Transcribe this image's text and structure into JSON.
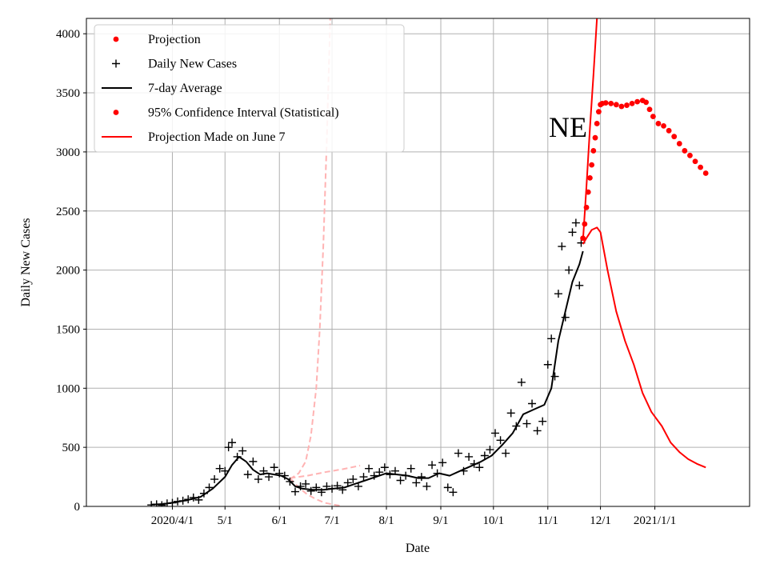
{
  "chart_data": {
    "type": "line",
    "region_label": "NE",
    "xlabel": "Date",
    "ylabel": "Daily New Cases",
    "ylim": [
      0,
      4130
    ],
    "xlim": [
      "2020-02-12",
      "2021-02-24"
    ],
    "grid": true,
    "legend_position": "top-left",
    "x_ticks": [
      {
        "date": "2020-04-01",
        "label": "2020/4/1"
      },
      {
        "date": "2020-05-01",
        "label": "5/1"
      },
      {
        "date": "2020-06-01",
        "label": "6/1"
      },
      {
        "date": "2020-07-01",
        "label": "7/1"
      },
      {
        "date": "2020-08-01",
        "label": "8/1"
      },
      {
        "date": "2020-09-01",
        "label": "9/1"
      },
      {
        "date": "2020-10-01",
        "label": "10/1"
      },
      {
        "date": "2020-11-01",
        "label": "11/1"
      },
      {
        "date": "2020-12-01",
        "label": "12/1"
      },
      {
        "date": "2021-01-01",
        "label": "2021/1/1"
      }
    ],
    "y_ticks": [
      0,
      500,
      1000,
      1500,
      2000,
      2500,
      3000,
      3500,
      4000
    ],
    "legend": [
      {
        "label": "Projection",
        "marker": "dot",
        "color": "#ff0000"
      },
      {
        "label": "Daily New Cases",
        "marker": "plus",
        "color": "#000000"
      },
      {
        "label": "7-day Average",
        "marker": "line",
        "color": "#000000"
      },
      {
        "label": "95% Confidence Interval (Statistical)",
        "marker": "dot",
        "color": "#ff0000"
      },
      {
        "label": "Projection Made on June 7",
        "marker": "line",
        "color": "#ff0000"
      }
    ],
    "series": {
      "daily_new_cases": {
        "color": "#000000",
        "points": [
          [
            "2020-03-20",
            12
          ],
          [
            "2020-03-23",
            18
          ],
          [
            "2020-03-26",
            10
          ],
          [
            "2020-03-29",
            25
          ],
          [
            "2020-04-01",
            30
          ],
          [
            "2020-04-04",
            42
          ],
          [
            "2020-04-07",
            48
          ],
          [
            "2020-04-10",
            60
          ],
          [
            "2020-04-13",
            75
          ],
          [
            "2020-04-16",
            55
          ],
          [
            "2020-04-19",
            110
          ],
          [
            "2020-04-22",
            160
          ],
          [
            "2020-04-25",
            230
          ],
          [
            "2020-04-28",
            320
          ],
          [
            "2020-05-01",
            300
          ],
          [
            "2020-05-03",
            500
          ],
          [
            "2020-05-05",
            540
          ],
          [
            "2020-05-08",
            420
          ],
          [
            "2020-05-11",
            470
          ],
          [
            "2020-05-14",
            270
          ],
          [
            "2020-05-17",
            380
          ],
          [
            "2020-05-20",
            230
          ],
          [
            "2020-05-23",
            300
          ],
          [
            "2020-05-26",
            250
          ],
          [
            "2020-05-29",
            330
          ],
          [
            "2020-06-01",
            280
          ],
          [
            "2020-06-04",
            260
          ],
          [
            "2020-06-07",
            210
          ],
          [
            "2020-06-10",
            125
          ],
          [
            "2020-06-13",
            170
          ],
          [
            "2020-06-16",
            190
          ],
          [
            "2020-06-19",
            130
          ],
          [
            "2020-06-22",
            160
          ],
          [
            "2020-06-25",
            120
          ],
          [
            "2020-06-28",
            170
          ],
          [
            "2020-07-01",
            150
          ],
          [
            "2020-07-04",
            175
          ],
          [
            "2020-07-07",
            140
          ],
          [
            "2020-07-10",
            200
          ],
          [
            "2020-07-13",
            230
          ],
          [
            "2020-07-16",
            170
          ],
          [
            "2020-07-19",
            250
          ],
          [
            "2020-07-22",
            320
          ],
          [
            "2020-07-25",
            260
          ],
          [
            "2020-07-28",
            290
          ],
          [
            "2020-07-31",
            330
          ],
          [
            "2020-08-03",
            270
          ],
          [
            "2020-08-06",
            300
          ],
          [
            "2020-08-09",
            220
          ],
          [
            "2020-08-12",
            260
          ],
          [
            "2020-08-15",
            320
          ],
          [
            "2020-08-18",
            200
          ],
          [
            "2020-08-21",
            250
          ],
          [
            "2020-08-24",
            170
          ],
          [
            "2020-08-27",
            350
          ],
          [
            "2020-08-30",
            280
          ],
          [
            "2020-09-02",
            370
          ],
          [
            "2020-09-05",
            160
          ],
          [
            "2020-09-08",
            120
          ],
          [
            "2020-09-11",
            450
          ],
          [
            "2020-09-14",
            300
          ],
          [
            "2020-09-17",
            420
          ],
          [
            "2020-09-20",
            360
          ],
          [
            "2020-09-23",
            330
          ],
          [
            "2020-09-26",
            430
          ],
          [
            "2020-09-29",
            480
          ],
          [
            "2020-10-02",
            620
          ],
          [
            "2020-10-05",
            560
          ],
          [
            "2020-10-08",
            450
          ],
          [
            "2020-10-11",
            790
          ],
          [
            "2020-10-14",
            680
          ],
          [
            "2020-10-17",
            1050
          ],
          [
            "2020-10-20",
            700
          ],
          [
            "2020-10-23",
            870
          ],
          [
            "2020-10-26",
            640
          ],
          [
            "2020-10-29",
            720
          ],
          [
            "2020-11-01",
            1200
          ],
          [
            "2020-11-03",
            1420
          ],
          [
            "2020-11-05",
            1100
          ],
          [
            "2020-11-07",
            1800
          ],
          [
            "2020-11-09",
            2200
          ],
          [
            "2020-11-11",
            1600
          ],
          [
            "2020-11-13",
            2000
          ],
          [
            "2020-11-15",
            2320
          ],
          [
            "2020-11-17",
            2400
          ],
          [
            "2020-11-19",
            1870
          ],
          [
            "2020-11-20",
            2230
          ]
        ]
      },
      "seven_day_average": {
        "color": "#000000",
        "points": [
          [
            "2020-03-20",
            15
          ],
          [
            "2020-03-27",
            20
          ],
          [
            "2020-04-03",
            35
          ],
          [
            "2020-04-10",
            55
          ],
          [
            "2020-04-17",
            80
          ],
          [
            "2020-04-24",
            150
          ],
          [
            "2020-05-01",
            250
          ],
          [
            "2020-05-05",
            350
          ],
          [
            "2020-05-09",
            420
          ],
          [
            "2020-05-13",
            380
          ],
          [
            "2020-05-17",
            310
          ],
          [
            "2020-05-21",
            270
          ],
          [
            "2020-05-25",
            280
          ],
          [
            "2020-05-29",
            270
          ],
          [
            "2020-06-02",
            260
          ],
          [
            "2020-06-06",
            230
          ],
          [
            "2020-06-10",
            170
          ],
          [
            "2020-06-14",
            150
          ],
          [
            "2020-06-20",
            140
          ],
          [
            "2020-06-26",
            140
          ],
          [
            "2020-07-02",
            150
          ],
          [
            "2020-07-08",
            160
          ],
          [
            "2020-07-14",
            190
          ],
          [
            "2020-07-20",
            220
          ],
          [
            "2020-07-26",
            250
          ],
          [
            "2020-08-01",
            280
          ],
          [
            "2020-08-07",
            270
          ],
          [
            "2020-08-13",
            260
          ],
          [
            "2020-08-19",
            240
          ],
          [
            "2020-08-25",
            240
          ],
          [
            "2020-08-31",
            280
          ],
          [
            "2020-09-06",
            260
          ],
          [
            "2020-09-12",
            300
          ],
          [
            "2020-09-18",
            340
          ],
          [
            "2020-09-24",
            380
          ],
          [
            "2020-09-30",
            430
          ],
          [
            "2020-10-06",
            520
          ],
          [
            "2020-10-12",
            620
          ],
          [
            "2020-10-18",
            780
          ],
          [
            "2020-10-24",
            820
          ],
          [
            "2020-10-30",
            860
          ],
          [
            "2020-11-03",
            1000
          ],
          [
            "2020-11-07",
            1400
          ],
          [
            "2020-11-11",
            1650
          ],
          [
            "2020-11-15",
            1900
          ],
          [
            "2020-11-19",
            2050
          ],
          [
            "2020-11-21",
            2160
          ]
        ]
      },
      "projection": {
        "color": "#ff0000",
        "points": [
          [
            "2020-11-21",
            2270
          ],
          [
            "2020-11-22",
            2390
          ],
          [
            "2020-11-23",
            2530
          ],
          [
            "2020-11-24",
            2660
          ],
          [
            "2020-11-25",
            2780
          ],
          [
            "2020-11-26",
            2890
          ],
          [
            "2020-11-27",
            3010
          ],
          [
            "2020-11-28",
            3120
          ],
          [
            "2020-11-29",
            3240
          ],
          [
            "2020-11-30",
            3340
          ],
          [
            "2020-12-01",
            3400
          ],
          [
            "2020-12-02",
            3410
          ],
          [
            "2020-12-04",
            3415
          ],
          [
            "2020-12-07",
            3410
          ],
          [
            "2020-12-10",
            3400
          ],
          [
            "2020-12-13",
            3385
          ],
          [
            "2020-12-16",
            3395
          ],
          [
            "2020-12-19",
            3410
          ],
          [
            "2020-12-22",
            3425
          ],
          [
            "2020-12-25",
            3435
          ],
          [
            "2020-12-27",
            3420
          ],
          [
            "2020-12-29",
            3360
          ],
          [
            "2020-12-31",
            3300
          ],
          [
            "2021-01-03",
            3240
          ],
          [
            "2021-01-06",
            3220
          ],
          [
            "2021-01-09",
            3180
          ],
          [
            "2021-01-12",
            3130
          ],
          [
            "2021-01-15",
            3070
          ],
          [
            "2021-01-18",
            3010
          ],
          [
            "2021-01-21",
            2970
          ],
          [
            "2021-01-24",
            2920
          ],
          [
            "2021-01-27",
            2870
          ],
          [
            "2021-01-30",
            2820
          ]
        ]
      },
      "confidence_interval_upper": {
        "color": "#ff0000",
        "points": [
          [
            "2020-11-21",
            2250
          ],
          [
            "2020-11-23",
            2700
          ],
          [
            "2020-11-25",
            3200
          ],
          [
            "2020-11-27",
            3650
          ],
          [
            "2020-11-29",
            4130
          ]
        ]
      },
      "confidence_interval_lower": {
        "color": "#ff0000",
        "points": [
          [
            "2020-11-21",
            2220
          ],
          [
            "2020-11-23",
            2270
          ],
          [
            "2020-11-26",
            2340
          ],
          [
            "2020-11-29",
            2360
          ],
          [
            "2020-12-01",
            2320
          ],
          [
            "2020-12-05",
            2000
          ],
          [
            "2020-12-10",
            1650
          ],
          [
            "2020-12-15",
            1400
          ],
          [
            "2020-12-20",
            1200
          ],
          [
            "2020-12-25",
            960
          ],
          [
            "2020-12-30",
            800
          ],
          [
            "2021-01-05",
            680
          ],
          [
            "2021-01-10",
            540
          ],
          [
            "2021-01-15",
            460
          ],
          [
            "2021-01-20",
            400
          ],
          [
            "2021-01-25",
            360
          ],
          [
            "2021-01-30",
            330
          ]
        ]
      },
      "june7_projection_upper": {
        "color": "#ffb3b3",
        "points": [
          [
            "2020-06-07",
            230
          ],
          [
            "2020-06-12",
            280
          ],
          [
            "2020-06-16",
            380
          ],
          [
            "2020-06-19",
            600
          ],
          [
            "2020-06-22",
            1000
          ],
          [
            "2020-06-24",
            1500
          ],
          [
            "2020-06-26",
            2200
          ],
          [
            "2020-06-28",
            3100
          ],
          [
            "2020-06-30",
            4130
          ]
        ]
      },
      "june7_projection_middle": {
        "color": "#ffb3b3",
        "points": [
          [
            "2020-06-07",
            240
          ],
          [
            "2020-06-17",
            260
          ],
          [
            "2020-06-27",
            290
          ],
          [
            "2020-07-07",
            315
          ],
          [
            "2020-07-17",
            345
          ]
        ]
      },
      "june7_projection_lower": {
        "color": "#ffb3b3",
        "points": [
          [
            "2020-06-07",
            240
          ],
          [
            "2020-06-12",
            160
          ],
          [
            "2020-06-17",
            100
          ],
          [
            "2020-06-22",
            60
          ],
          [
            "2020-06-27",
            30
          ],
          [
            "2020-07-02",
            15
          ],
          [
            "2020-07-06",
            5
          ]
        ]
      }
    }
  }
}
